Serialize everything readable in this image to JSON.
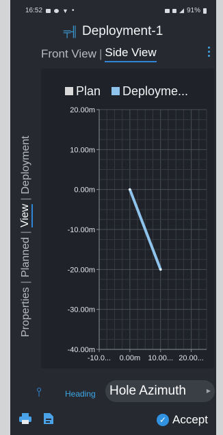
{
  "status_bar": {
    "time": "16:52",
    "battery": "91%"
  },
  "app": {
    "title": "Deployment-1",
    "icon": "hole-depth-icon"
  },
  "view_tabs": {
    "front": "Front View",
    "separator": "|",
    "side": "Side View",
    "active": "Side View"
  },
  "side_tabs": {
    "items": [
      "Properties",
      "Planned",
      "View",
      "Deployment"
    ],
    "separator": "|",
    "active": "View"
  },
  "chart_data": {
    "type": "line",
    "legend": [
      {
        "label": "Plan",
        "color": "#d9d9d9"
      },
      {
        "label": "Deployme...",
        "color": "#8ec3ec"
      }
    ],
    "legend_placement": "top",
    "y_ticks": [
      "20.00m",
      "10.00m",
      "0.00m",
      "-10.00m",
      "-20.00m",
      "-30.00m",
      "-40.00m"
    ],
    "x_ticks": [
      "-10.0...",
      "0.00m",
      "10.00...",
      "20.00..."
    ],
    "xlim": [
      -10,
      25
    ],
    "ylim": [
      -40,
      20
    ],
    "grid": true,
    "series": [
      {
        "name": "Deployme...",
        "color": "#8ec3ec",
        "points": [
          [
            0,
            0
          ],
          [
            10,
            -20
          ]
        ]
      }
    ]
  },
  "bottom": {
    "heading_label": "Heading",
    "heading_value": "Hole Azimuth"
  },
  "actions": {
    "accept_label": "Accept"
  }
}
